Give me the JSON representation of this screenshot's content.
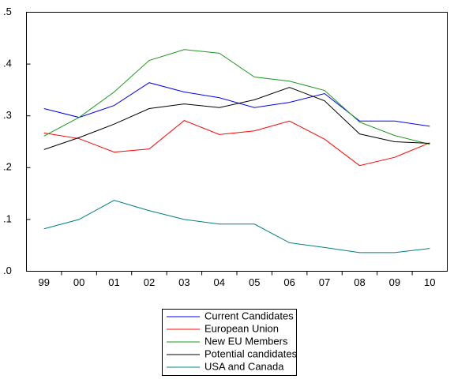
{
  "chart_data": {
    "type": "line",
    "categories": [
      "99",
      "00",
      "01",
      "02",
      "03",
      "04",
      "05",
      "06",
      "07",
      "08",
      "09",
      "10"
    ],
    "series": [
      {
        "name": "Current Candidates",
        "color": "#0000ff",
        "values": [
          0.314,
          0.297,
          0.32,
          0.364,
          0.346,
          0.335,
          0.316,
          0.326,
          0.343,
          0.29,
          0.29,
          0.28
        ]
      },
      {
        "name": "European Union",
        "color": "#ff0000",
        "values": [
          0.267,
          0.256,
          0.23,
          0.236,
          0.291,
          0.264,
          0.271,
          0.29,
          0.255,
          0.204,
          0.22,
          0.248
        ]
      },
      {
        "name": "New EU Members",
        "color": "#1a9a1a",
        "values": [
          0.261,
          0.297,
          0.346,
          0.407,
          0.428,
          0.421,
          0.375,
          0.367,
          0.349,
          0.288,
          0.262,
          0.245
        ]
      },
      {
        "name": "Potential candidates",
        "color": "#000000",
        "values": [
          0.235,
          0.258,
          0.284,
          0.314,
          0.323,
          0.316,
          0.331,
          0.355,
          0.329,
          0.265,
          0.25,
          0.247
        ]
      },
      {
        "name": "USA and Canada",
        "color": "#008080",
        "values": [
          0.082,
          0.1,
          0.137,
          0.117,
          0.1,
          0.091,
          0.091,
          0.055,
          0.046,
          0.036,
          0.036,
          0.044
        ]
      }
    ],
    "ylim": [
      0,
      0.5
    ],
    "yticks": [
      {
        "value": 0,
        "label": ".0"
      },
      {
        "value": 0.1,
        "label": ".1"
      },
      {
        "value": 0.2,
        "label": ".2"
      },
      {
        "value": 0.3,
        "label": ".3"
      },
      {
        "value": 0.4,
        "label": ".4"
      },
      {
        "value": 0.5,
        "label": ".5"
      }
    ],
    "grid": false,
    "legend": "bottom"
  }
}
